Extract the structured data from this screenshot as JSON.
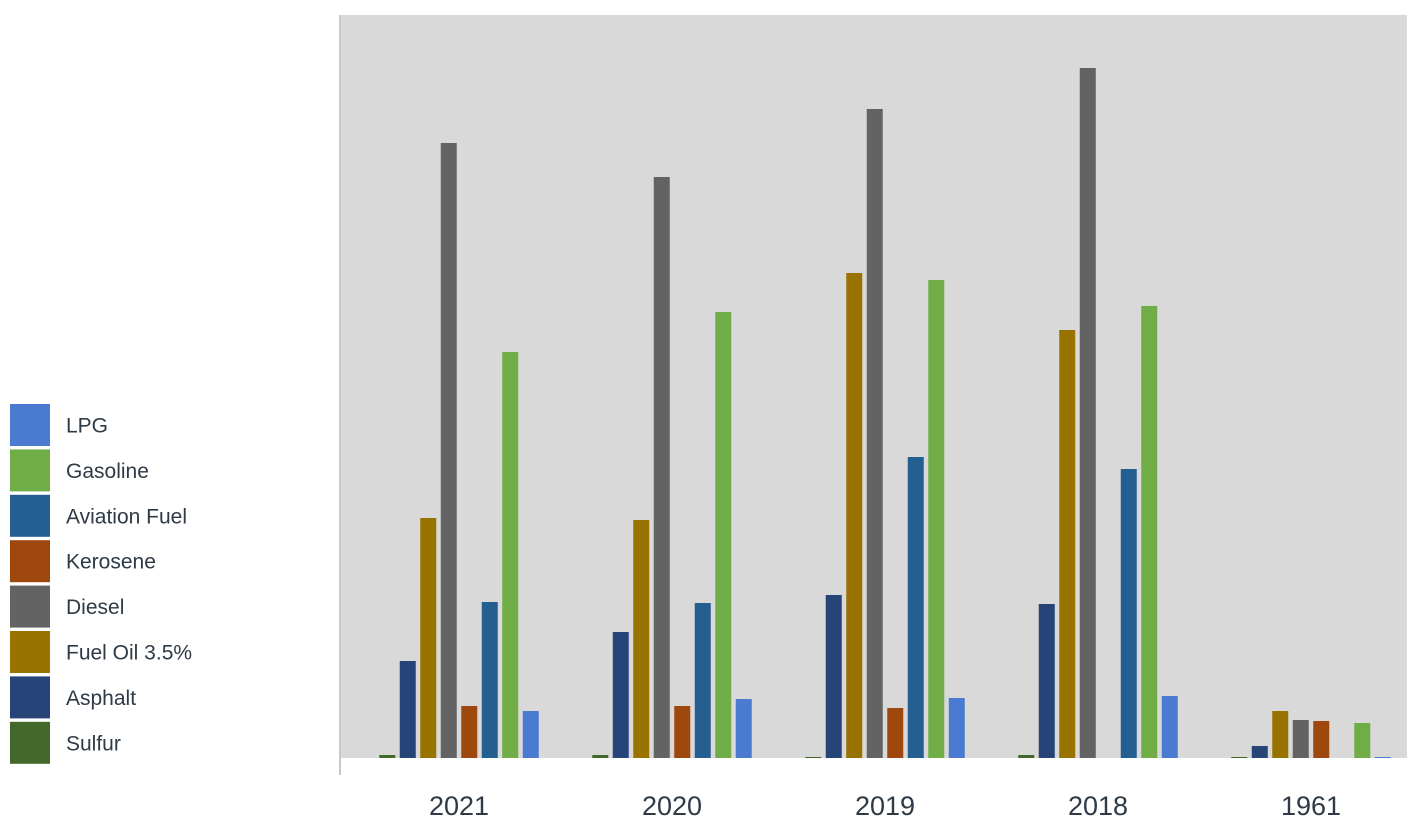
{
  "chart_data": {
    "type": "bar",
    "categories": [
      "2021",
      "2020",
      "2019",
      "2018",
      "1961"
    ],
    "series": [
      {
        "name": "Sulfur",
        "color": "#43682b",
        "values": [
          3,
          3,
          1,
          3,
          1
        ]
      },
      {
        "name": "Asphalt",
        "color": "#264478",
        "values": [
          97,
          126,
          163,
          154,
          12
        ]
      },
      {
        "name": "Fuel Oil 3.5%",
        "color": "#997300",
        "values": [
          240,
          238,
          485,
          428,
          47
        ]
      },
      {
        "name": "Diesel",
        "color": "#636363",
        "values": [
          615,
          581,
          649,
          690,
          38
        ]
      },
      {
        "name": "Kerosene",
        "color": "#9e480e",
        "values": [
          52,
          52,
          50,
          0,
          37
        ]
      },
      {
        "name": "Aviation Fuel",
        "color": "#255e91",
        "values": [
          156,
          155,
          301,
          289,
          0
        ]
      },
      {
        "name": "Gasoline",
        "color": "#70ad47",
        "values": [
          406,
          446,
          478,
          452,
          35
        ]
      },
      {
        "name": "LPG",
        "color": "#4a7bd0",
        "values": [
          47,
          59,
          60,
          62,
          1
        ]
      }
    ]
  }
}
